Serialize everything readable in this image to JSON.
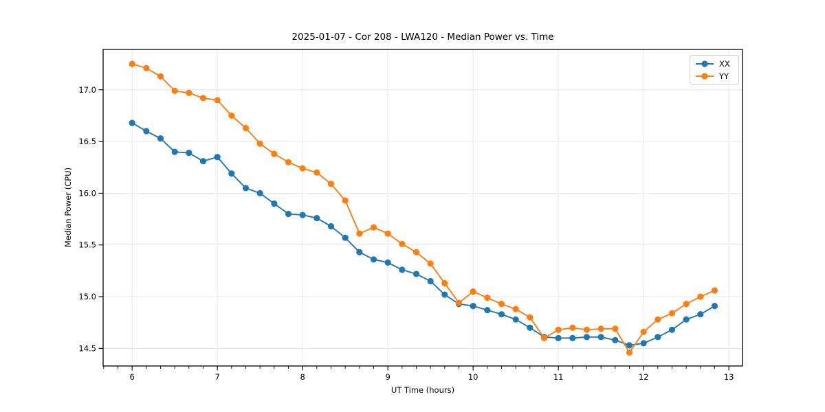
{
  "chart_data": {
    "type": "line",
    "title": "2025-01-07 - Cor 208 - LWA120 - Median Power vs. Time",
    "xlabel": "UT Time (hours)",
    "ylabel": "Median Power (CPU)",
    "xlim": [
      5.66,
      13.16
    ],
    "ylim": [
      14.33,
      17.39
    ],
    "x_ticks": [
      6,
      7,
      8,
      9,
      10,
      11,
      12,
      13
    ],
    "x_tick_labels": [
      "6",
      "7",
      "8",
      "9",
      "10",
      "11",
      "12",
      "13"
    ],
    "x_minor_tick_step": 0.166667,
    "y_ticks": [
      14.5,
      15.0,
      15.5,
      16.0,
      16.5,
      17.0
    ],
    "y_tick_labels": [
      "14.5",
      "15.0",
      "15.5",
      "16.0",
      "16.5",
      "17.0"
    ],
    "grid": true,
    "legend_position": "upper right",
    "x": [
      6.0,
      6.1667,
      6.3333,
      6.5,
      6.6667,
      6.8333,
      7.0,
      7.1667,
      7.3333,
      7.5,
      7.6667,
      7.8333,
      8.0,
      8.1667,
      8.3333,
      8.5,
      8.6667,
      8.8333,
      9.0,
      9.1667,
      9.3333,
      9.5,
      9.6667,
      9.8333,
      10.0,
      10.1667,
      10.3333,
      10.5,
      10.6667,
      10.8333,
      11.0,
      11.1667,
      11.3333,
      11.5,
      11.6667,
      11.8333,
      12.0,
      12.1667,
      12.3333,
      12.5,
      12.6667,
      12.8333
    ],
    "series": [
      {
        "name": "XX",
        "color": "#1f77b4",
        "marker": "circle",
        "values": [
          16.68,
          16.6,
          16.53,
          16.4,
          16.39,
          16.31,
          16.35,
          16.19,
          16.05,
          16.0,
          15.9,
          15.8,
          15.79,
          15.76,
          15.68,
          15.57,
          15.43,
          15.36,
          15.33,
          15.26,
          15.22,
          15.15,
          15.02,
          14.93,
          14.91,
          14.87,
          14.83,
          14.78,
          14.7,
          14.61,
          14.6,
          14.6,
          14.61,
          14.61,
          14.58,
          14.53,
          14.55,
          14.61,
          14.68,
          14.78,
          14.83,
          14.91
        ]
      },
      {
        "name": "YY",
        "color": "#ff7f0e",
        "marker": "circle",
        "values": [
          17.25,
          17.21,
          17.13,
          16.99,
          16.97,
          16.92,
          16.9,
          16.75,
          16.63,
          16.48,
          16.38,
          16.3,
          16.24,
          16.2,
          16.09,
          15.93,
          15.61,
          15.67,
          15.61,
          15.51,
          15.43,
          15.32,
          15.13,
          14.94,
          15.05,
          14.99,
          14.93,
          14.88,
          14.8,
          14.6,
          14.68,
          14.7,
          14.68,
          14.69,
          14.69,
          14.46,
          14.66,
          14.78,
          14.84,
          14.93,
          15.0,
          15.06
        ]
      }
    ]
  }
}
